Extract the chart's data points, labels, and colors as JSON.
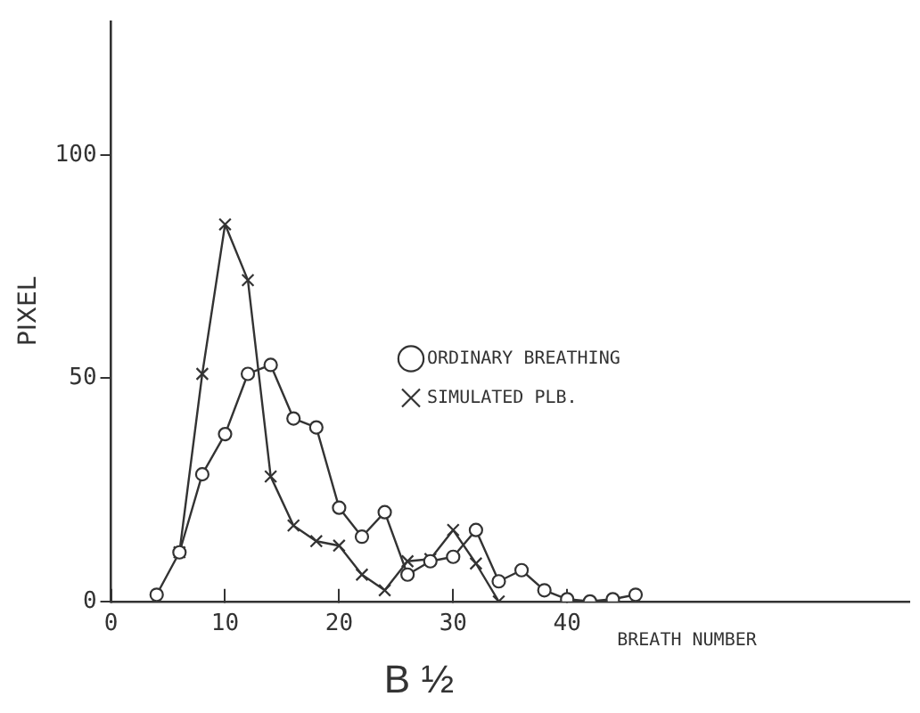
{
  "chart_data": {
    "type": "line",
    "xlabel": "BREATH NUMBER",
    "ylabel": "PIXEL",
    "annotations": [
      "B ½"
    ],
    "xlim": [
      0,
      70
    ],
    "xticks": [
      0,
      10,
      20,
      30,
      40
    ],
    "ylim": [
      0,
      130
    ],
    "yticks": [
      0,
      50,
      100
    ],
    "grid": false,
    "legend": "right",
    "line_style": "solid",
    "series": [
      {
        "name": "ORDINARY BREATHING",
        "color": "#333333",
        "marker": "circle",
        "x": [
          4,
          6,
          8,
          10,
          12,
          14,
          16,
          18,
          20,
          22,
          24,
          26,
          28,
          30,
          32,
          34,
          36,
          38,
          40,
          42,
          44,
          46
        ],
        "values": [
          1.5,
          11,
          28.5,
          37.5,
          51,
          53,
          41,
          39,
          21,
          14.5,
          20,
          6,
          9,
          10,
          16,
          4.5,
          7,
          2.5,
          0.5,
          0,
          0.5,
          1.5
        ]
      },
      {
        "name": "SIMULATED PLB.",
        "color": "#333333",
        "marker": "cross",
        "x": [
          6,
          8,
          10,
          12,
          14,
          16,
          18,
          20,
          22,
          24,
          26,
          28,
          30,
          32,
          34
        ],
        "values": [
          11,
          51,
          84.5,
          72,
          28,
          17,
          13.5,
          12.5,
          6,
          2.5,
          9,
          9.5,
          16,
          8.5,
          0
        ]
      }
    ]
  }
}
